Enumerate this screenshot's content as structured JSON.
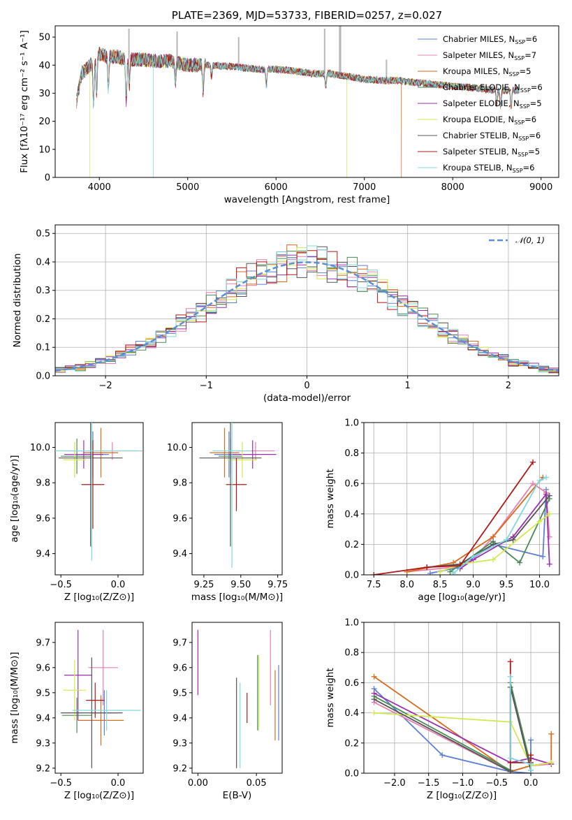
{
  "colors": {
    "Chabrier MILES": "#5b7fd1",
    "Salpeter MILES": "#e87fae",
    "Kroupa MILES": "#d86a1c",
    "Chabrier ELODIE": "#4a8a55",
    "Salpeter ELODIE": "#9a2fb0",
    "Kroupa ELODIE": "#d2e84e",
    "Chabrier STELIB": "#555555",
    "Salpeter STELIB": "#b01818",
    "Kroupa STELIB": "#7fd8e0"
  },
  "chart_data": [
    {
      "type": "line",
      "title": "PLATE=2369, MJD=53733, FIBERID=0257, z=0.027",
      "xlabel": "wavelength [Angstrom, rest frame]",
      "ylabel": "Flux [fλ10⁻¹⁷ erg cm⁻² s⁻¹ A⁻¹]",
      "xlim": [
        3500,
        9200
      ],
      "ylim": [
        0,
        54
      ],
      "xticks": [
        "4000",
        "5000",
        "6000",
        "7000",
        "8000",
        "9000"
      ],
      "yticks": [
        "0",
        "10",
        "20",
        "30",
        "40",
        "50"
      ],
      "grid": false,
      "legend_position": "top-right",
      "legend": [
        {
          "model": "Chabrier MILES",
          "nssp": "6"
        },
        {
          "model": "Salpeter MILES",
          "nssp": "7"
        },
        {
          "model": "Kroupa MILES",
          "nssp": "5"
        },
        {
          "model": "Chabrier ELODIE",
          "nssp": "6"
        },
        {
          "model": "Salpeter ELODIE",
          "nssp": "5"
        },
        {
          "model": "Kroupa ELODIE",
          "nssp": "6"
        },
        {
          "model": "Chabrier STELIB",
          "nssp": "6"
        },
        {
          "model": "Salpeter STELIB",
          "nssp": "5"
        },
        {
          "model": "Kroupa STELIB",
          "nssp": "6"
        }
      ],
      "continuum": {
        "x": [
          3740,
          3800,
          3900,
          4000,
          4100,
          4200,
          4300,
          4400,
          4500,
          4600,
          4800,
          5000,
          5200,
          5500,
          5800,
          6000,
          6200,
          6400,
          6600,
          6800,
          7000,
          7200,
          7400,
          7500,
          7700,
          8000,
          8200,
          8500,
          8700,
          8750
        ],
        "y": [
          27,
          37,
          40,
          44,
          43,
          43,
          42,
          42,
          42,
          41.5,
          41.5,
          40,
          40,
          39.5,
          38.5,
          38.5,
          38,
          37,
          37,
          36,
          35,
          34.5,
          34.5,
          34,
          33.5,
          32.5,
          32,
          31,
          31,
          31
        ]
      },
      "absorption_lines": [
        {
          "x": 3934,
          "depth": 15
        },
        {
          "x": 3969,
          "depth": 12
        },
        {
          "x": 4101,
          "depth": 11
        },
        {
          "x": 4304,
          "depth": 15
        },
        {
          "x": 4340,
          "depth": 9
        },
        {
          "x": 4861,
          "depth": 7
        },
        {
          "x": 5175,
          "depth": 9
        },
        {
          "x": 5270,
          "depth": 4
        },
        {
          "x": 5890,
          "depth": 6
        },
        {
          "x": 6563,
          "depth": 5
        },
        {
          "x": 8498,
          "depth": 5
        },
        {
          "x": 8542,
          "depth": 6
        },
        {
          "x": 8662,
          "depth": 6
        }
      ],
      "gray_spikes": [
        {
          "x": 4335,
          "y": 53
        },
        {
          "x": 4880,
          "y": 52
        },
        {
          "x": 5577,
          "y": 50
        },
        {
          "x": 6550,
          "y": 53
        },
        {
          "x": 6720,
          "y": 54
        },
        {
          "x": 6730,
          "y": 54
        },
        {
          "x": 7250,
          "y": 42
        }
      ],
      "model_drops": [
        {
          "model": "Kroupa ELODIE",
          "x": 3890
        },
        {
          "model": "Kroupa STELIB",
          "x": 4610
        },
        {
          "model": "Kroupa ELODIE",
          "x": 6800
        },
        {
          "model": "Kroupa MILES",
          "x": 7420
        }
      ]
    },
    {
      "type": "histogram",
      "xlabel": "(data-model)/error",
      "ylabel": "Normed distribution",
      "xlim": [
        -2.5,
        2.5
      ],
      "ylim": [
        0,
        0.53
      ],
      "xticks": [
        "−2",
        "−1",
        "0",
        "1",
        "2"
      ],
      "yticks": [
        "0.0",
        "0.1",
        "0.2",
        "0.3",
        "0.4",
        "0.5"
      ],
      "grid": true,
      "legend_position": "top-right",
      "reference_label": "𝒩(0, 1)",
      "bin_width": 0.1,
      "bin_start": -2.5
    },
    {
      "type": "scatter",
      "xlabel": "Z [log₁₀(Z/Z⊙)]",
      "ylabel": "age  [log₁₀(age/yr)]",
      "xlim": [
        -0.55,
        0.22
      ],
      "ylim": [
        9.28,
        10.14
      ],
      "xticks": [
        "−0.5",
        "0.0"
      ],
      "yticks": [
        "9.4",
        "9.6",
        "9.8",
        "10.0"
      ],
      "points": [
        {
          "model": "Chabrier MILES",
          "x": -0.22,
          "xerr": 0.14,
          "y": 9.96,
          "yerr": 0.13
        },
        {
          "model": "Salpeter MILES",
          "x": -0.05,
          "xerr": 0.42,
          "y": 9.98,
          "yerr": 0.05
        },
        {
          "model": "Kroupa MILES",
          "x": -0.15,
          "xerr": 0.15,
          "y": 9.97,
          "yerr": 0.14
        },
        {
          "model": "Chabrier ELODIE",
          "x": -0.36,
          "xerr": 0.14,
          "y": 9.95,
          "yerr": 0.1
        },
        {
          "model": "Salpeter ELODIE",
          "x": -0.3,
          "xerr": 0.17,
          "y": 9.96,
          "yerr": 0.08
        },
        {
          "model": "Kroupa ELODIE",
          "x": -0.38,
          "xerr": 0.1,
          "y": 9.93,
          "yerr": 0.1
        },
        {
          "model": "Chabrier STELIB",
          "x": -0.24,
          "xerr": 0.28,
          "y": 9.94,
          "yerr": 0.5
        },
        {
          "model": "Salpeter STELIB",
          "x": -0.22,
          "xerr": 0.1,
          "y": 9.79,
          "yerr": 0.25
        },
        {
          "model": "Kroupa STELIB",
          "x": -0.23,
          "xerr": 0.44,
          "y": 9.98,
          "yerr": 0.62
        }
      ]
    },
    {
      "type": "scatter",
      "xlabel": "mass [log₁₀(M/M⊙)]",
      "ylabel": "",
      "xlim": [
        9.17,
        9.78
      ],
      "ylim": [
        9.28,
        10.14
      ],
      "xticks": [
        "9.25",
        "9.50",
        "9.75"
      ],
      "yticks": [
        "9.4",
        "9.6",
        "9.8",
        "10.0"
      ],
      "points": [
        {
          "model": "Chabrier MILES",
          "x": 9.42,
          "xerr": 0.1,
          "y": 9.96,
          "yerr": 0.13
        },
        {
          "model": "Salpeter MILES",
          "x": 9.6,
          "xerr": 0.13,
          "y": 9.98,
          "yerr": 0.05
        },
        {
          "model": "Kroupa MILES",
          "x": 9.39,
          "xerr": 0.1,
          "y": 9.97,
          "yerr": 0.14
        },
        {
          "model": "Chabrier ELODIE",
          "x": 9.43,
          "xerr": 0.08,
          "y": 9.95,
          "yerr": 0.1
        },
        {
          "model": "Salpeter ELODIE",
          "x": 9.58,
          "xerr": 0.16,
          "y": 9.96,
          "yerr": 0.08
        },
        {
          "model": "Kroupa ELODIE",
          "x": 9.51,
          "xerr": 0.1,
          "y": 9.93,
          "yerr": 0.1
        },
        {
          "model": "Chabrier STELIB",
          "x": 9.43,
          "xerr": 0.21,
          "y": 9.94,
          "yerr": 0.5
        },
        {
          "model": "Salpeter STELIB",
          "x": 9.47,
          "xerr": 0.07,
          "y": 9.79,
          "yerr": 0.15
        },
        {
          "model": "Kroupa STELIB",
          "x": 9.44,
          "xerr": 0.13,
          "y": 9.98,
          "yerr": 0.66
        }
      ]
    },
    {
      "type": "line",
      "xlabel": "age  [log₁₀(age/yr)]",
      "ylabel": "mass weight",
      "xlim": [
        7.35,
        10.3
      ],
      "ylim": [
        0,
        1
      ],
      "xticks": [
        "7.5",
        "8.0",
        "8.5",
        "9.0",
        "9.5",
        "10.0"
      ],
      "yticks": [
        "0.0",
        "0.2",
        "0.4",
        "0.6",
        "0.8",
        "1.0"
      ],
      "grid": true,
      "series": [
        {
          "model": "Chabrier MILES",
          "x": [
            8.35,
            8.8,
            9.3,
            10.05,
            10.1
          ],
          "y": [
            0.01,
            0.05,
            0.2,
            0.12,
            0.56
          ]
        },
        {
          "model": "Salpeter MILES",
          "x": [
            8.0,
            8.7,
            9.0,
            9.3,
            9.9,
            10.1,
            10.15
          ],
          "y": [
            0.02,
            0.05,
            0.1,
            0.25,
            0.6,
            0.54,
            0.25
          ]
        },
        {
          "model": "Kroupa MILES",
          "x": [
            8.0,
            8.7,
            9.3,
            10.05
          ],
          "y": [
            0.02,
            0.08,
            0.25,
            0.64
          ]
        },
        {
          "model": "Chabrier ELODIE",
          "x": [
            8.65,
            8.85,
            9.3,
            9.7,
            10.15
          ],
          "y": [
            0.02,
            0.08,
            0.22,
            0.08,
            0.5
          ]
        },
        {
          "model": "Salpeter ELODIE",
          "x": [
            8.8,
            9.0,
            9.6,
            10.1,
            10.15
          ],
          "y": [
            0.04,
            0.1,
            0.25,
            0.53,
            0.07
          ]
        },
        {
          "model": "Kroupa ELODIE",
          "x": [
            8.5,
            8.8,
            9.3,
            10.0,
            10.15
          ],
          "y": [
            0.02,
            0.07,
            0.1,
            0.35,
            0.4
          ]
        },
        {
          "model": "Chabrier STELIB",
          "x": [
            8.3,
            8.8,
            9.3,
            9.6,
            10.15
          ],
          "y": [
            0.05,
            0.07,
            0.2,
            0.23,
            0.52
          ]
        },
        {
          "model": "Salpeter STELIB",
          "x": [
            7.5,
            8.3,
            8.8,
            9.9
          ],
          "y": [
            0.0,
            0.05,
            0.06,
            0.74
          ]
        },
        {
          "model": "Kroupa STELIB",
          "x": [
            8.7,
            9.0,
            9.5,
            10.0,
            10.1
          ],
          "y": [
            0.01,
            0.12,
            0.23,
            0.62,
            0.64
          ]
        }
      ]
    },
    {
      "type": "scatter",
      "xlabel": "Z [log₁₀(Z/Z⊙)]",
      "ylabel": "mass [log₁₀(M/M⊙)]",
      "xlim": [
        -0.55,
        0.22
      ],
      "ylim": [
        9.18,
        9.78
      ],
      "xticks": [
        "−0.5",
        "0.0"
      ],
      "yticks": [
        "9.2",
        "9.3",
        "9.4",
        "9.5",
        "9.6",
        "9.7"
      ],
      "points": [
        {
          "model": "Chabrier MILES",
          "x": -0.12,
          "xerr": 0.12,
          "y": 9.42,
          "yerr": 0.09
        },
        {
          "model": "Salpeter MILES",
          "x": -0.13,
          "xerr": 0.13,
          "y": 9.6,
          "yerr": 0.15
        },
        {
          "model": "Kroupa MILES",
          "x": -0.15,
          "xerr": 0.2,
          "y": 9.39,
          "yerr": 0.1
        },
        {
          "model": "Chabrier ELODIE",
          "x": -0.36,
          "xerr": 0.13,
          "y": 9.41,
          "yerr": 0.07
        },
        {
          "model": "Salpeter ELODIE",
          "x": -0.35,
          "xerr": 0.12,
          "y": 9.57,
          "yerr": 0.18
        },
        {
          "model": "Kroupa ELODIE",
          "x": -0.38,
          "xerr": 0.1,
          "y": 9.51,
          "yerr": 0.12
        },
        {
          "model": "Chabrier STELIB",
          "x": -0.23,
          "xerr": 0.27,
          "y": 9.42,
          "yerr": 0.22
        },
        {
          "model": "Salpeter STELIB",
          "x": -0.2,
          "xerr": 0.08,
          "y": 9.47,
          "yerr": 0.07
        },
        {
          "model": "Kroupa STELIB",
          "x": -0.1,
          "xerr": 0.3,
          "y": 9.43,
          "yerr": 0.08
        }
      ]
    },
    {
      "type": "scatter",
      "xlabel": "E(B-V)",
      "ylabel": "",
      "xlim": [
        -0.005,
        0.072
      ],
      "ylim": [
        9.18,
        9.78
      ],
      "xticks": [
        "0.00",
        "0.05"
      ],
      "yticks": [
        "9.2",
        "9.3",
        "9.4",
        "9.5",
        "9.6",
        "9.7"
      ],
      "points": [
        {
          "model": "Chabrier MILES",
          "x": 0.069,
          "y": 9.46,
          "yerr": 0.15
        },
        {
          "model": "Salpeter MILES",
          "x": 0.062,
          "y": 9.6,
          "yerr": 0.15
        },
        {
          "model": "Kroupa MILES",
          "x": 0.066,
          "y": 9.45,
          "yerr": 0.14
        },
        {
          "model": "Chabrier ELODIE",
          "x": 0.051,
          "y": 9.5,
          "yerr": 0.15
        },
        {
          "model": "Salpeter ELODIE",
          "x": 0.0,
          "y": 9.62,
          "yerr": 0.13
        },
        {
          "model": "Kroupa ELODIE",
          "x": 0.052,
          "y": 9.5,
          "yerr": 0.15
        },
        {
          "model": "Chabrier STELIB",
          "x": 0.033,
          "y": 9.38,
          "yerr": 0.18
        },
        {
          "model": "Salpeter STELIB",
          "x": 0.042,
          "y": 9.44,
          "yerr": 0.06
        },
        {
          "model": "Kroupa STELIB",
          "x": 0.036,
          "y": 9.37,
          "yerr": 0.17
        }
      ]
    },
    {
      "type": "line",
      "xlabel": "Z [log₁₀(Z/Z⊙)]",
      "ylabel": "mass weight",
      "xlim": [
        -2.45,
        0.42
      ],
      "ylim": [
        0,
        1
      ],
      "xticks": [
        "−2.0",
        "−1.5",
        "−1.0",
        "−0.5",
        "0.0"
      ],
      "yticks": [
        "0.0",
        "0.2",
        "0.4",
        "0.6",
        "0.8",
        "1.0"
      ],
      "grid": true,
      "series": [
        {
          "model": "Chabrier MILES",
          "x": [
            -2.3,
            -1.3,
            -0.3,
            0.0,
            0.0
          ],
          "y": [
            0.56,
            0.12,
            0.01,
            0.0,
            0.22
          ]
        },
        {
          "model": "Salpeter MILES",
          "x": [
            -2.3,
            -0.3,
            0.0,
            0.3
          ],
          "y": [
            0.47,
            0.01,
            0.05,
            0.06
          ]
        },
        {
          "model": "Kroupa MILES",
          "x": [
            -2.3,
            -0.3,
            0.0,
            0.3,
            0.3
          ],
          "y": [
            0.64,
            0.01,
            0.05,
            0.07,
            0.26
          ]
        },
        {
          "model": "Chabrier ELODIE",
          "x": [
            -2.3,
            -0.3,
            -0.3,
            0.0
          ],
          "y": [
            0.51,
            0.02,
            0.6,
            0.05
          ]
        },
        {
          "model": "Salpeter ELODIE",
          "x": [
            -2.3,
            -0.3,
            0.0,
            0.3
          ],
          "y": [
            0.53,
            0.07,
            0.1,
            0.06
          ]
        },
        {
          "model": "Kroupa ELODIE",
          "x": [
            -2.3,
            -0.3,
            0.0,
            0.3
          ],
          "y": [
            0.4,
            0.34,
            0.05,
            0.07
          ]
        },
        {
          "model": "Chabrier STELIB",
          "x": [
            -2.3,
            -0.3,
            -0.3,
            0.0
          ],
          "y": [
            0.49,
            0.01,
            0.57,
            0.02
          ]
        },
        {
          "model": "Salpeter STELIB",
          "x": [
            -0.3,
            -0.3,
            0.0,
            0.0
          ],
          "y": [
            0.74,
            0.07,
            0.07,
            0.12
          ]
        },
        {
          "model": "Kroupa STELIB",
          "x": [
            -0.3,
            -0.3,
            0.0,
            0.0
          ],
          "y": [
            0.64,
            0.1,
            0.06,
            0.02
          ]
        }
      ]
    }
  ]
}
